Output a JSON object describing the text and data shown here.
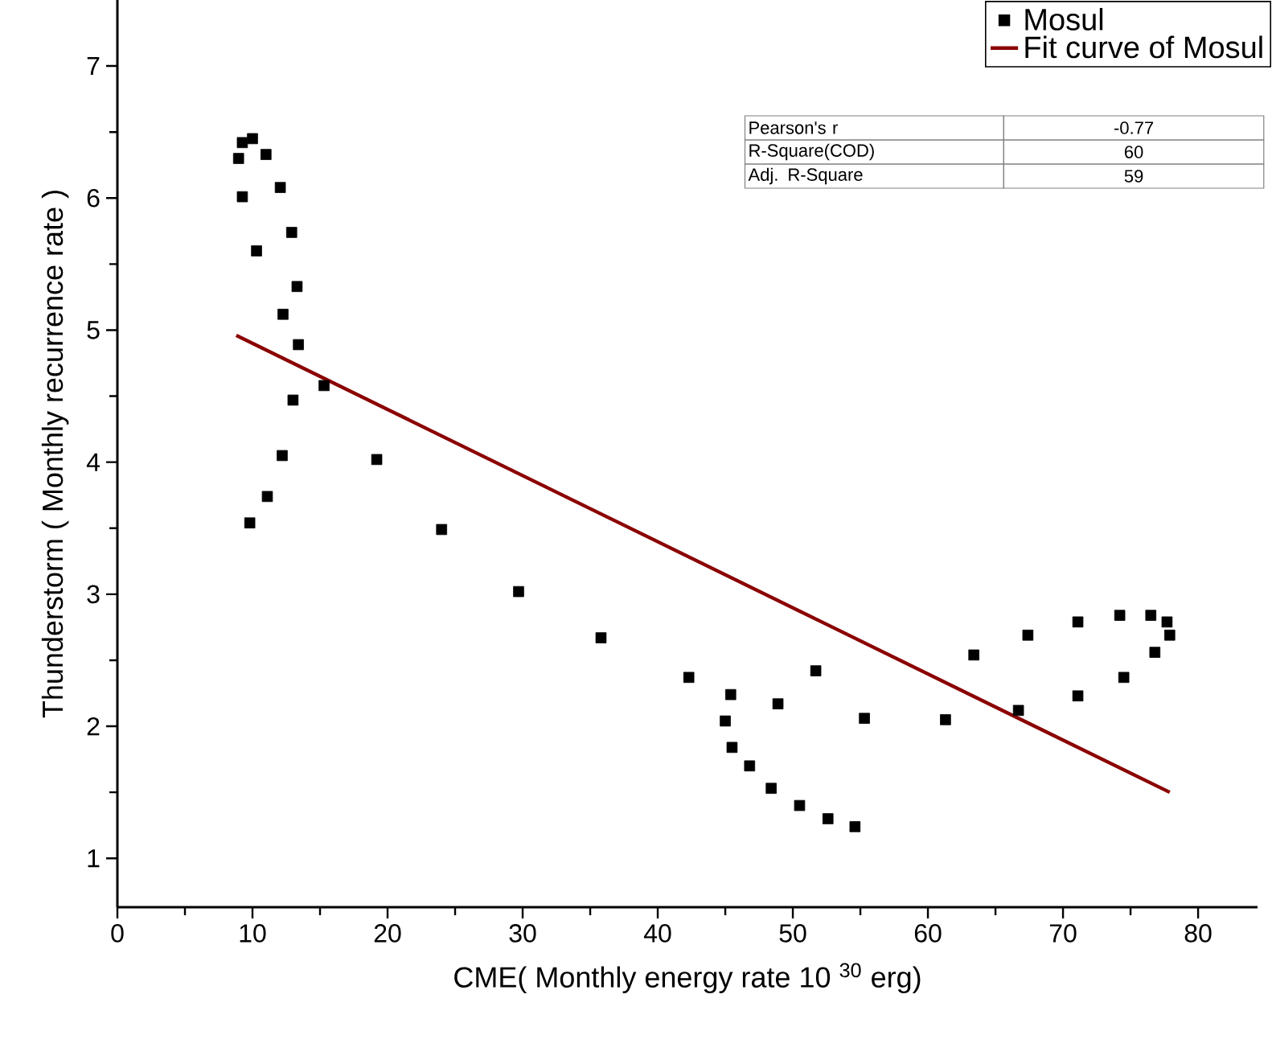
{
  "chart_data": {
    "type": "scatter",
    "xlabel": "CME( Monthly energy rate 10 $^{30}$ erg)",
    "ylabel": "Thunderstorm ( Monthly recurrence rate )",
    "xlim": [
      0,
      84.4
    ],
    "xticks": [
      0,
      10,
      20,
      30,
      40,
      50,
      60,
      70,
      80
    ],
    "ylim": [
      0.63,
      7.5
    ],
    "yticks": [
      1,
      2,
      3,
      4,
      5,
      6,
      7
    ],
    "legend": "top right",
    "series": [
      {
        "name": "Mosul",
        "marker": "square",
        "color": "#000000",
        "x": [
          8.97,
          9.25,
          10.0,
          11.0,
          9.25,
          10.3,
          9.8,
          11.1,
          12.06,
          12.9,
          13.3,
          12.26,
          13.4,
          15.3,
          13.0,
          12.2,
          19.2,
          24.0,
          29.7,
          35.8,
          42.3,
          45.4,
          45.0,
          45.5,
          46.8,
          48.4,
          50.5,
          52.6,
          54.6,
          48.9,
          51.7,
          55.3,
          61.3,
          63.4,
          66.7,
          67.4,
          71.1,
          71.1,
          74.2,
          74.5,
          76.5,
          76.8,
          77.7,
          77.9
        ],
        "values": [
          6.3,
          6.42,
          6.45,
          6.33,
          6.01,
          5.6,
          3.54,
          3.74,
          6.08,
          5.74,
          5.33,
          5.12,
          4.89,
          4.58,
          4.47,
          4.05,
          4.02,
          3.49,
          3.02,
          2.67,
          2.37,
          2.24,
          2.04,
          1.84,
          1.7,
          1.53,
          1.4,
          1.3,
          1.24,
          2.17,
          2.42,
          2.06,
          2.05,
          2.54,
          2.12,
          2.69,
          2.79,
          2.23,
          2.84,
          2.37,
          2.84,
          2.56,
          2.79,
          2.69
        ]
      },
      {
        "name": "Fit curve of Mosul",
        "type": "line",
        "marker": "none",
        "color": "#8b0000",
        "x": [
          8.8,
          77.9
        ],
        "values": [
          4.96,
          1.5
        ]
      }
    ],
    "annotations": [
      "Pearson's r",
      "-0.77",
      "R-Square(COD)",
      "60",
      "Adj. R-Square",
      "59"
    ]
  }
}
